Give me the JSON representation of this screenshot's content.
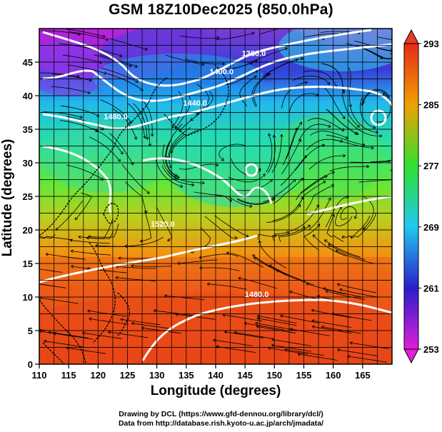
{
  "title": "GSM 18Z10Dec2025 (850.0hPa)",
  "xlabel": "Longitude (degrees)",
  "ylabel": "Latitude  (degrees)",
  "credits": [
    "Drawing by DCL (https://www.gfd-dennou.org/library/dcl/)",
    "Data from http://database.rish.kyoto-u.ac.jp/arch/jmadata/"
  ],
  "map": {
    "lon_range": [
      110,
      170
    ],
    "lat_range": [
      0,
      50
    ],
    "lon_ticks": [
      "110",
      "115",
      "120",
      "125",
      "130",
      "135",
      "140",
      "145",
      "150",
      "155",
      "160",
      "165"
    ],
    "lat_ticks": [
      "0",
      "5",
      "10",
      "15",
      "20",
      "25",
      "30",
      "35",
      "40",
      "45"
    ],
    "colorbar": {
      "ticks": [
        "253",
        "261",
        "269",
        "277",
        "285",
        "293"
      ],
      "colors": [
        "#e01ed8",
        "#2a1ec8",
        "#20c8f0",
        "#30e030",
        "#f0a000",
        "#e82a18"
      ]
    },
    "contour_labels": [
      {
        "text": "1360.0",
        "lon": 146.5,
        "lat": 45.9
      },
      {
        "text": "1400.0",
        "lon": 141.0,
        "lat": 43.2
      },
      {
        "text": "1440.0",
        "lon": 136.5,
        "lat": 38.5
      },
      {
        "text": "1480.0",
        "lon": 123.0,
        "lat": 36.5
      },
      {
        "text": "1520.0",
        "lon": 131.0,
        "lat": 20.5
      },
      {
        "text": "1480.0",
        "lon": 147.0,
        "lat": 10.0
      }
    ]
  }
}
